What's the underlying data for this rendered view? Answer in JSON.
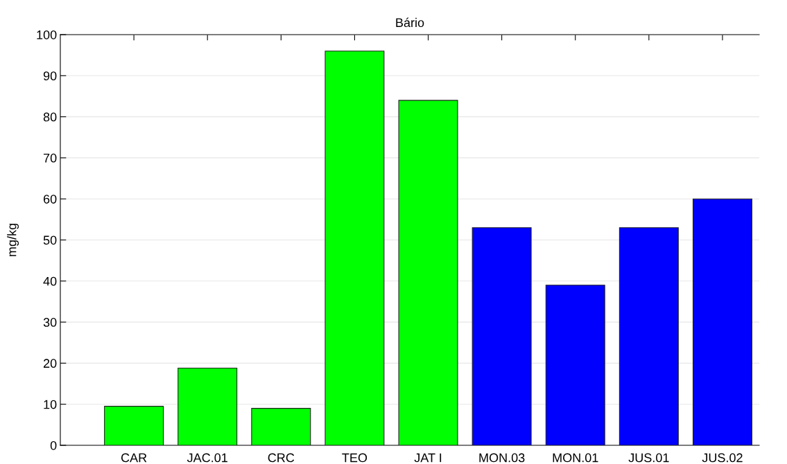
{
  "chart_data": {
    "type": "bar",
    "title": "Bário",
    "ylabel": "mg/kg",
    "categories": [
      "CAR",
      "JAC.01",
      "CRC",
      "TEO",
      "JAT I",
      "MON.03",
      "MON.01",
      "JUS.01",
      "JUS.02"
    ],
    "values": [
      9.5,
      18.8,
      9.0,
      96,
      84,
      53,
      39,
      53,
      60
    ],
    "colors": [
      "#00ff00",
      "#00ff00",
      "#00ff00",
      "#00ff00",
      "#00ff00",
      "#0000ff",
      "#0000ff",
      "#0000ff",
      "#0000ff"
    ],
    "ylim": [
      0,
      100
    ],
    "yticks": [
      0,
      10,
      20,
      30,
      40,
      50,
      60,
      70,
      80,
      90,
      100
    ],
    "grid": "y"
  }
}
